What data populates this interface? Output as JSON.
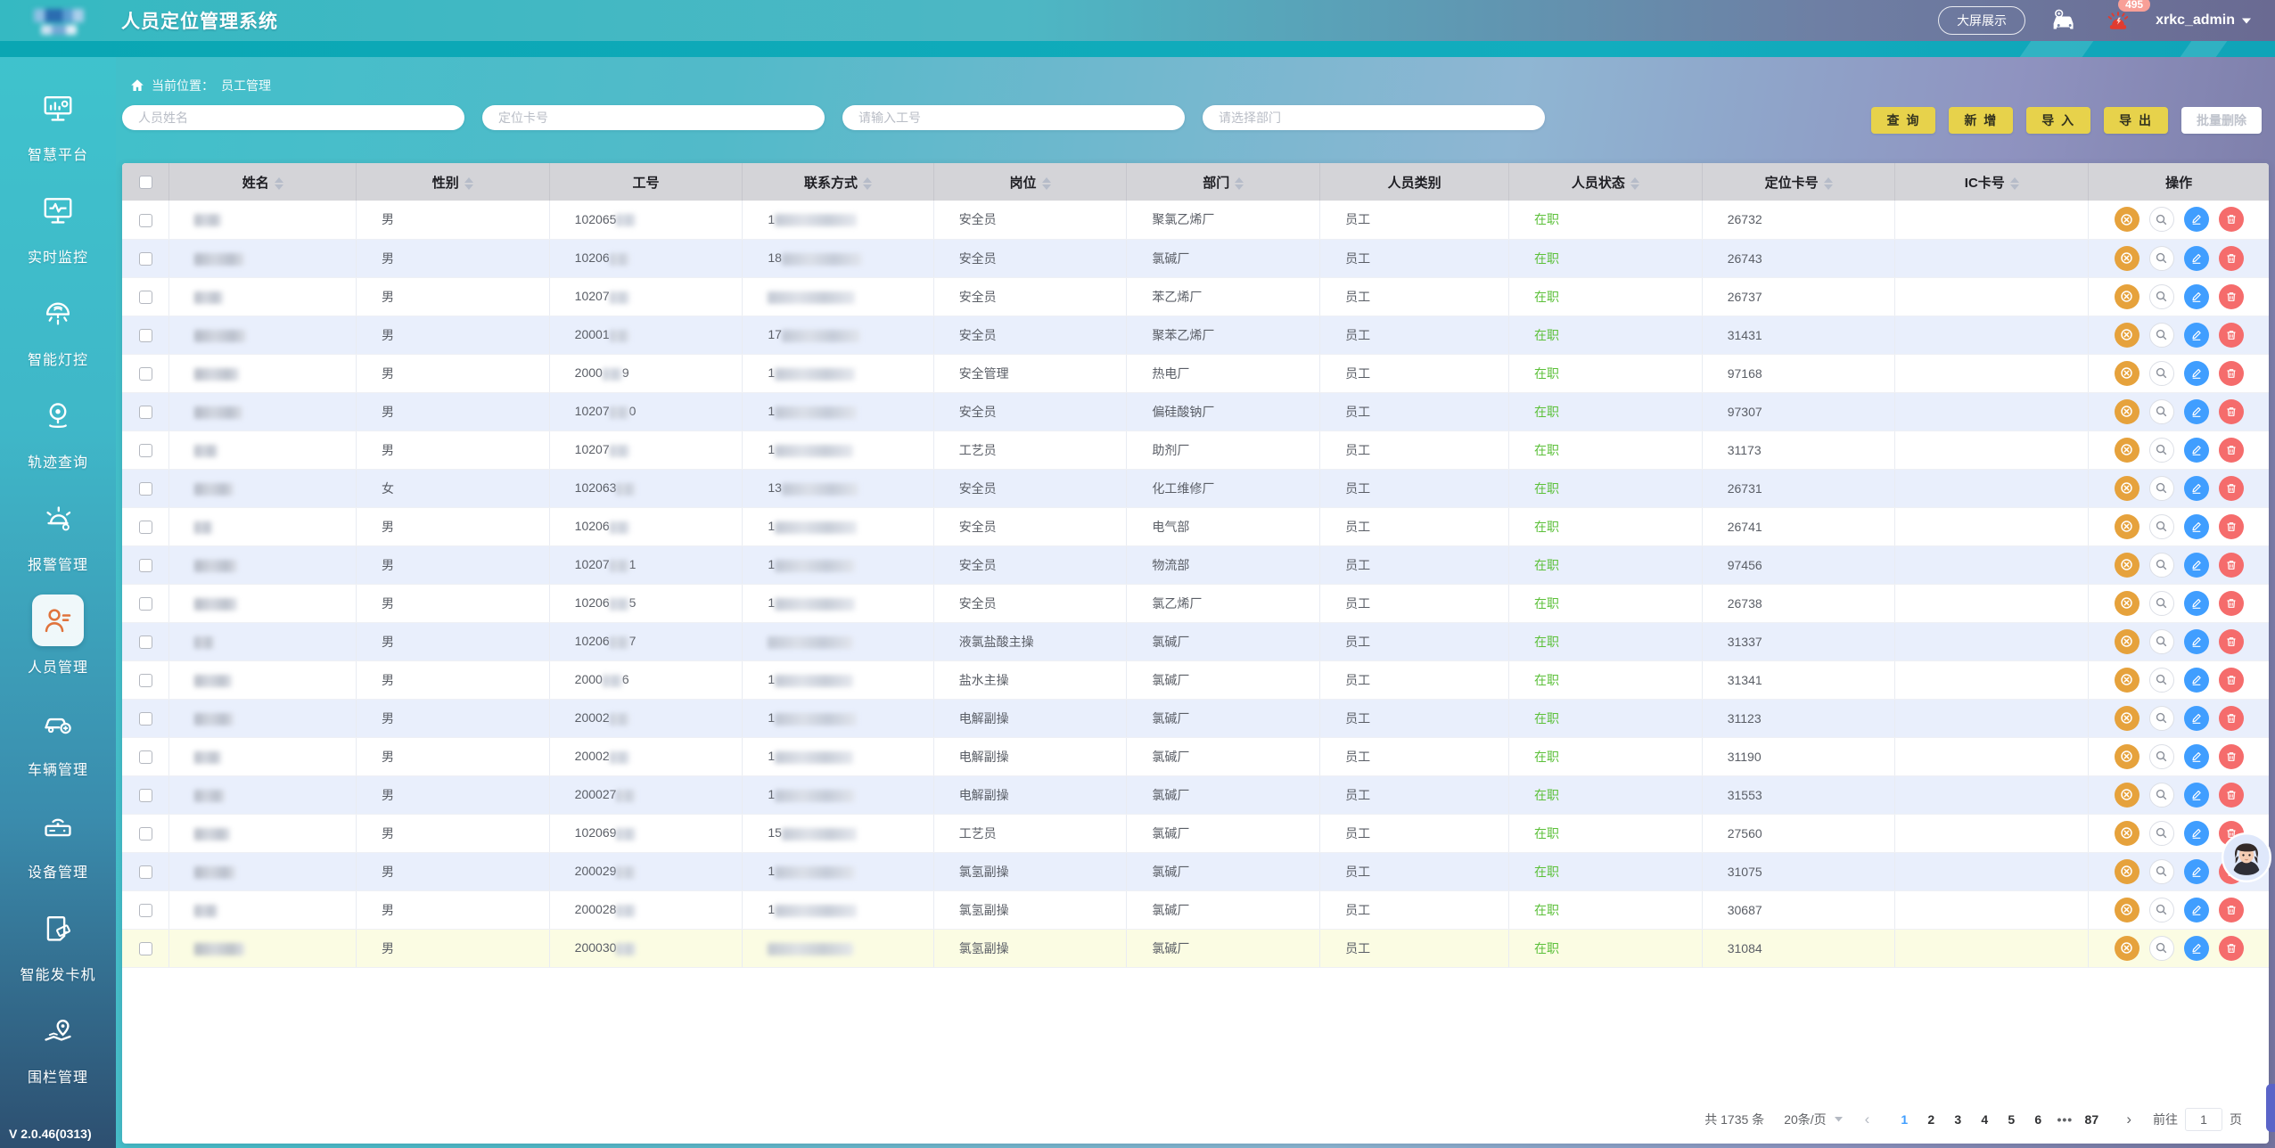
{
  "header": {
    "title": "人员定位管理系统",
    "bigscreen_label": "大屏展示",
    "alarm_count": "495",
    "username": "xrkc_admin",
    "icons": [
      "vehicle-status-icon",
      "siren-icon",
      "caret-down-icon"
    ]
  },
  "sidebar": {
    "items": [
      {
        "label": "智慧平台",
        "icon": "platform-icon",
        "active": false
      },
      {
        "label": "实时监控",
        "icon": "realtime-monitor-icon",
        "active": false
      },
      {
        "label": "智能灯控",
        "icon": "light-control-icon",
        "active": false
      },
      {
        "label": "轨迹查询",
        "icon": "track-query-icon",
        "active": false
      },
      {
        "label": "报警管理",
        "icon": "alarm-manage-icon",
        "active": false
      },
      {
        "label": "人员管理",
        "icon": "personnel-icon",
        "active": true
      },
      {
        "label": "车辆管理",
        "icon": "vehicle-icon",
        "active": false
      },
      {
        "label": "设备管理",
        "icon": "device-icon",
        "active": false
      },
      {
        "label": "智能发卡机",
        "icon": "card-machine-icon",
        "active": false
      },
      {
        "label": "围栏管理",
        "icon": "fence-icon",
        "active": false
      }
    ],
    "version": "V 2.0.46(0313)"
  },
  "breadcrumb": {
    "prefix": "当前位置：",
    "current": "员工管理",
    "icon": "home-icon"
  },
  "filters": {
    "inputs": [
      {
        "name": "person-name-input",
        "placeholder": "人员姓名"
      },
      {
        "name": "locate-card-input",
        "placeholder": "定位卡号"
      },
      {
        "name": "work-id-input",
        "placeholder": "请输入工号"
      },
      {
        "name": "department-select",
        "placeholder": "请选择部门"
      }
    ]
  },
  "toolbar": {
    "buttons": [
      {
        "name": "search-button",
        "label": "查 询",
        "disabled": false
      },
      {
        "name": "add-button",
        "label": "新 增",
        "disabled": false
      },
      {
        "name": "import-button",
        "label": "导 入",
        "disabled": false
      },
      {
        "name": "export-button",
        "label": "导 出",
        "disabled": false
      },
      {
        "name": "batch-delete-button",
        "label": "批量删除",
        "disabled": true
      }
    ]
  },
  "table": {
    "headers": [
      {
        "label": "姓名",
        "sortable": true
      },
      {
        "label": "性别",
        "sortable": true
      },
      {
        "label": "工号",
        "sortable": false
      },
      {
        "label": "联系方式",
        "sortable": true
      },
      {
        "label": "岗位",
        "sortable": true
      },
      {
        "label": "部门",
        "sortable": true
      },
      {
        "label": "人员类别",
        "sortable": false
      },
      {
        "label": "人员状态",
        "sortable": true
      },
      {
        "label": "定位卡号",
        "sortable": true
      },
      {
        "label": "IC卡号",
        "sortable": true
      },
      {
        "label": "操作",
        "sortable": false
      }
    ],
    "rows": [
      {
        "name_w": 30,
        "gender": "男",
        "id_pre": "102065",
        "id_suf": "",
        "phone_pre": "1",
        "phone_w": 92,
        "position": "安全员",
        "department": "聚氯乙烯厂",
        "category": "员工",
        "status": "在职",
        "card": "26732",
        "ic": "",
        "highlight": false
      },
      {
        "name_w": 56,
        "gender": "男",
        "id_pre": "10206",
        "id_suf": "",
        "phone_pre": "18",
        "phone_w": 90,
        "position": "安全员",
        "department": "氯碱厂",
        "category": "员工",
        "status": "在职",
        "card": "26743",
        "ic": "",
        "highlight": false
      },
      {
        "name_w": 32,
        "gender": "男",
        "id_pre": "10207",
        "id_suf": "",
        "phone_pre": "",
        "phone_w": 98,
        "position": "安全员",
        "department": "苯乙烯厂",
        "category": "员工",
        "status": "在职",
        "card": "26737",
        "ic": "",
        "highlight": false
      },
      {
        "name_w": 58,
        "gender": "男",
        "id_pre": "20001",
        "id_suf": "",
        "phone_pre": "17",
        "phone_w": 88,
        "position": "安全员",
        "department": "聚苯乙烯厂",
        "category": "员工",
        "status": "在职",
        "card": "31431",
        "ic": "",
        "highlight": false
      },
      {
        "name_w": 50,
        "gender": "男",
        "id_pre": "2000",
        "id_suf": "9",
        "phone_pre": "1",
        "phone_w": 90,
        "position": "安全管理",
        "department": "热电厂",
        "category": "员工",
        "status": "在职",
        "card": "97168",
        "ic": "",
        "highlight": false
      },
      {
        "name_w": 54,
        "gender": "男",
        "id_pre": "10207",
        "id_suf": "0",
        "phone_pre": "1",
        "phone_w": 92,
        "position": "安全员",
        "department": "偏硅酸钠厂",
        "category": "员工",
        "status": "在职",
        "card": "97307",
        "ic": "",
        "highlight": false
      },
      {
        "name_w": 26,
        "gender": "男",
        "id_pre": "10207",
        "id_suf": "",
        "phone_pre": "1",
        "phone_w": 88,
        "position": "工艺员",
        "department": "助剂厂",
        "category": "员工",
        "status": "在职",
        "card": "31173",
        "ic": "",
        "highlight": false
      },
      {
        "name_w": 44,
        "gender": "女",
        "id_pre": "102063",
        "id_suf": "",
        "phone_pre": "13",
        "phone_w": 86,
        "position": "安全员",
        "department": "化工维修厂",
        "category": "员工",
        "status": "在职",
        "card": "26731",
        "ic": "",
        "highlight": false
      },
      {
        "name_w": 20,
        "gender": "男",
        "id_pre": "10206",
        "id_suf": "",
        "phone_pre": "1",
        "phone_w": 92,
        "position": "安全员",
        "department": "电气部",
        "category": "员工",
        "status": "在职",
        "card": "26741",
        "ic": "",
        "highlight": false
      },
      {
        "name_w": 48,
        "gender": "男",
        "id_pre": "10207",
        "id_suf": "1",
        "phone_pre": "1",
        "phone_w": 90,
        "position": "安全员",
        "department": "物流部",
        "category": "员工",
        "status": "在职",
        "card": "97456",
        "ic": "",
        "highlight": false
      },
      {
        "name_w": 48,
        "gender": "男",
        "id_pre": "10206",
        "id_suf": "5",
        "phone_pre": "1",
        "phone_w": 90,
        "position": "安全员",
        "department": "氯乙烯厂",
        "category": "员工",
        "status": "在职",
        "card": "26738",
        "ic": "",
        "highlight": false
      },
      {
        "name_w": 22,
        "gender": "男",
        "id_pre": "10206",
        "id_suf": "7",
        "phone_pre": "",
        "phone_w": 96,
        "position": "液氯盐酸主操",
        "department": "氯碱厂",
        "category": "员工",
        "status": "在职",
        "card": "31337",
        "ic": "",
        "highlight": false
      },
      {
        "name_w": 42,
        "gender": "男",
        "id_pre": "2000",
        "id_suf": "6",
        "phone_pre": "1",
        "phone_w": 88,
        "position": "盐水主操",
        "department": "氯碱厂",
        "category": "员工",
        "status": "在职",
        "card": "31341",
        "ic": "",
        "highlight": false
      },
      {
        "name_w": 44,
        "gender": "男",
        "id_pre": "20002",
        "id_suf": "",
        "phone_pre": "1",
        "phone_w": 92,
        "position": "电解副操",
        "department": "氯碱厂",
        "category": "员工",
        "status": "在职",
        "card": "31123",
        "ic": "",
        "highlight": false
      },
      {
        "name_w": 30,
        "gender": "男",
        "id_pre": "20002",
        "id_suf": "",
        "phone_pre": "1",
        "phone_w": 88,
        "position": "电解副操",
        "department": "氯碱厂",
        "category": "员工",
        "status": "在职",
        "card": "31190",
        "ic": "",
        "highlight": false
      },
      {
        "name_w": 34,
        "gender": "男",
        "id_pre": "200027",
        "id_suf": "",
        "phone_pre": "1",
        "phone_w": 90,
        "position": "电解副操",
        "department": "氯碱厂",
        "category": "员工",
        "status": "在职",
        "card": "31553",
        "ic": "",
        "highlight": false
      },
      {
        "name_w": 40,
        "gender": "男",
        "id_pre": "102069",
        "id_suf": "",
        "phone_pre": "15",
        "phone_w": 84,
        "position": "工艺员",
        "department": "氯碱厂",
        "category": "员工",
        "status": "在职",
        "card": "27560",
        "ic": "",
        "highlight": false
      },
      {
        "name_w": 46,
        "gender": "男",
        "id_pre": "200029",
        "id_suf": "",
        "phone_pre": "1",
        "phone_w": 90,
        "position": "氯氢副操",
        "department": "氯碱厂",
        "category": "员工",
        "status": "在职",
        "card": "31075",
        "ic": "",
        "highlight": false
      },
      {
        "name_w": 26,
        "gender": "男",
        "id_pre": "200028",
        "id_suf": "",
        "phone_pre": "1",
        "phone_w": 92,
        "position": "氯氢副操",
        "department": "氯碱厂",
        "category": "员工",
        "status": "在职",
        "card": "30687",
        "ic": "",
        "highlight": false
      },
      {
        "name_w": 56,
        "gender": "男",
        "id_pre": "200030",
        "id_suf": "",
        "phone_pre": "",
        "phone_w": 96,
        "position": "氯氢副操",
        "department": "氯碱厂",
        "category": "员工",
        "status": "在职",
        "card": "31084",
        "ic": "",
        "highlight": true
      }
    ]
  },
  "pagination": {
    "total": "共 1735 条",
    "page_size": "20条/页",
    "pages": [
      "1",
      "2",
      "3",
      "4",
      "5",
      "6",
      "•••",
      "87"
    ],
    "active_page": "1",
    "prev": "‹",
    "next": "›",
    "goto_label": "前往",
    "goto_value": "1",
    "goto_suffix": "页"
  }
}
